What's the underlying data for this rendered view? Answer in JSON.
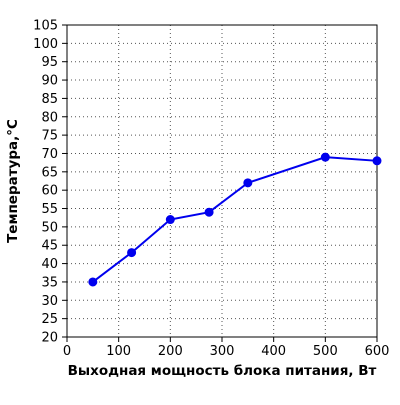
{
  "chart_data": {
    "type": "line",
    "title": "",
    "xlabel": "Выходная мощность блока питания, Вт",
    "ylabel": "Температура,°C",
    "xlim": [
      0,
      600
    ],
    "ylim": [
      20,
      105
    ],
    "xticks": [
      0,
      100,
      200,
      300,
      400,
      500,
      600
    ],
    "yticks": [
      20,
      25,
      30,
      35,
      40,
      45,
      50,
      55,
      60,
      65,
      70,
      75,
      80,
      85,
      90,
      95,
      100,
      105
    ],
    "grid": true,
    "legend": "none",
    "series": [
      {
        "x": [
          50,
          125,
          200,
          275,
          350,
          500,
          600
        ],
        "y": [
          35,
          43,
          52,
          54,
          62,
          69,
          68
        ],
        "color": "#0000ee",
        "marker": "circle"
      }
    ]
  }
}
